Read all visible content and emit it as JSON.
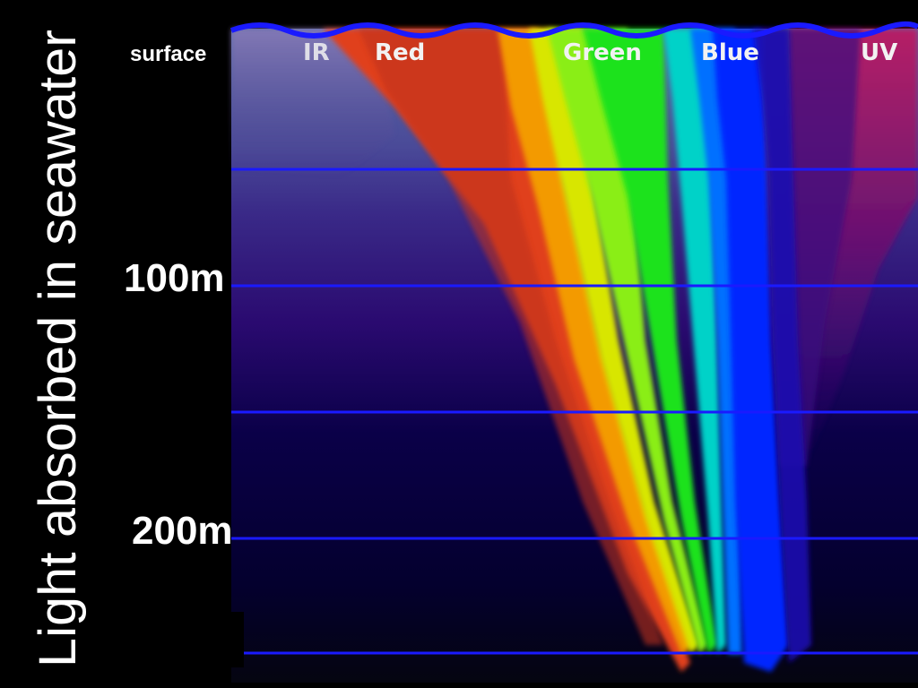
{
  "title": "Light absorbed in seawater",
  "bands": [
    {
      "label": "IR"
    },
    {
      "label": "Red"
    },
    {
      "label": "Green"
    },
    {
      "label": "Blue"
    },
    {
      "label": "UV"
    }
  ],
  "depth_labels": {
    "surface": "surface",
    "d100": "100m",
    "d200": "200m"
  },
  "colors": {
    "background": "#000000",
    "deep_water": "#05003c",
    "mid_water": "#2a0a6e",
    "blue_line": "#1a1aff",
    "red": "#e0401e",
    "orange": "#f39a00",
    "yellow": "#d8e600",
    "green": "#1fe21f",
    "cyan": "#00d2c8",
    "blue": "#0028ff"
  }
}
